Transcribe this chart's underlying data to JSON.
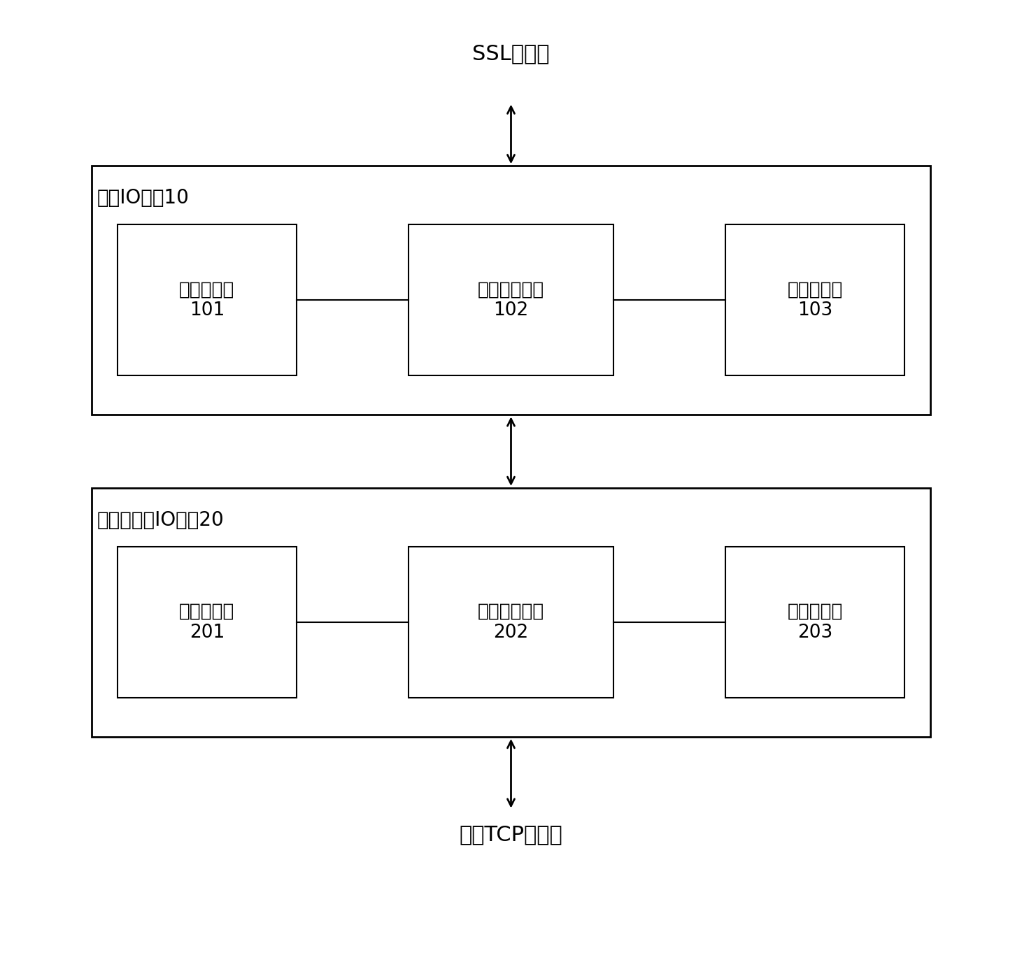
{
  "title_top": "SSL协议栈",
  "title_bottom": "专用TCP协议栈",
  "box1_label": "抽象IO接口10",
  "box2_label": "非连续内存IO接口20",
  "sub_boxes_row1": [
    {
      "label": "抽象读接口\n101",
      "id": "101"
    },
    {
      "label": "接口管理单元\n102",
      "id": "102"
    },
    {
      "label": "抽象写接口\n103",
      "id": "103"
    }
  ],
  "sub_boxes_row2": [
    {
      "label": "实际读接口\n201",
      "id": "201"
    },
    {
      "label": "数据操作单元\n202",
      "id": "202"
    },
    {
      "label": "实际写接口\n203",
      "id": "203"
    }
  ],
  "bg_color": "#ffffff",
  "box_edge_color": "#000000",
  "font_color": "#000000",
  "arrow_color": "#000000",
  "figsize": [
    14.61,
    13.96
  ],
  "dpi": 100
}
